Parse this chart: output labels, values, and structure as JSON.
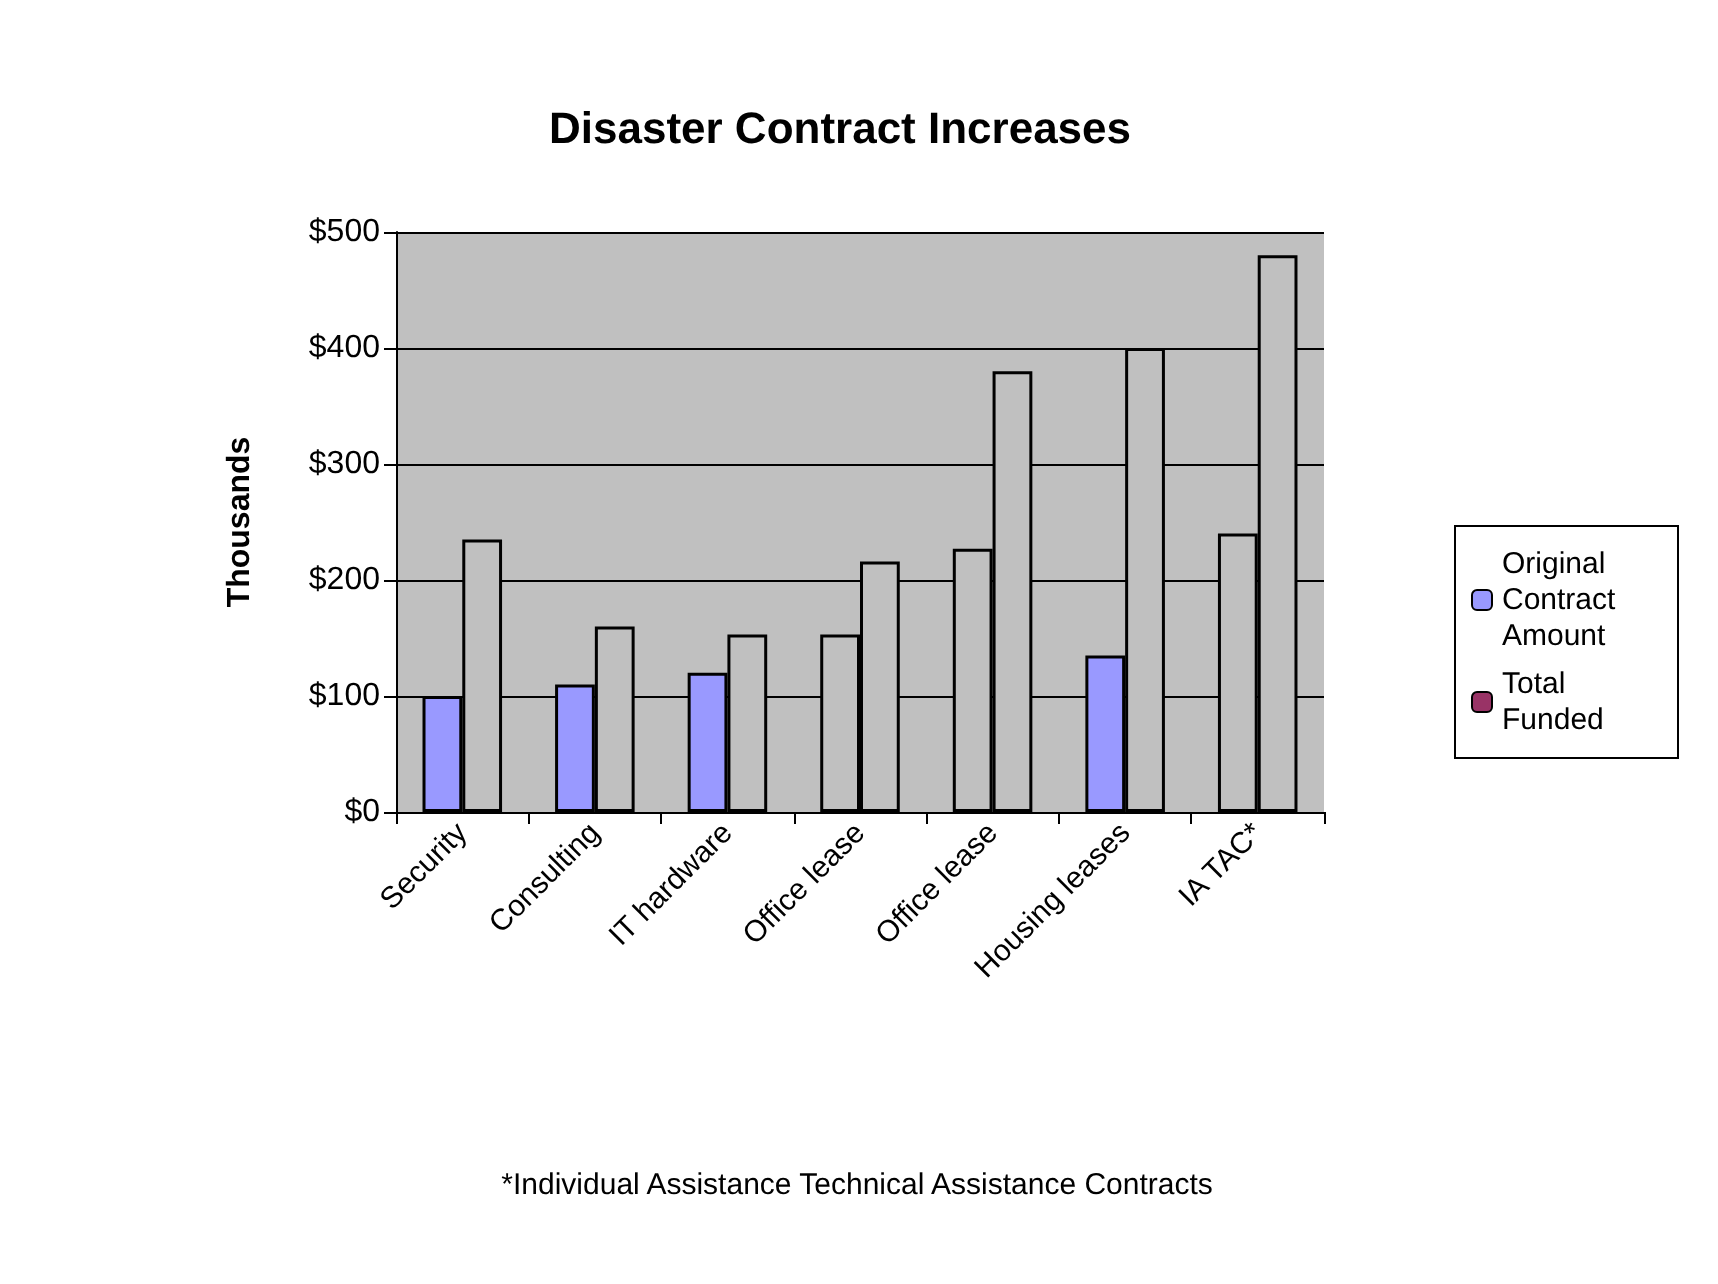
{
  "chart_data": {
    "type": "bar",
    "title": "Disaster Contract Increases",
    "ylabel": "Thousands",
    "categories": [
      "Security",
      "Consulting",
      "IT hardware",
      "Office lease",
      "Office lease",
      "Housing leases",
      "IA TAC*"
    ],
    "series": [
      {
        "name": "Original Contract Amount",
        "color": "#9999ff",
        "colors": [
          "#9999ff",
          "#9999ff",
          "#9999ff",
          "#c0c0c0",
          "#c0c0c0",
          "#9999ff",
          "#c0c0c0"
        ],
        "values": [
          100,
          110,
          120,
          153,
          227,
          135,
          240
        ]
      },
      {
        "name": "Total Funded",
        "color": "#993366",
        "colors": [
          "#c0c0c0",
          "#c0c0c0",
          "#c0c0c0",
          "#c0c0c0",
          "#c0c0c0",
          "#c0c0c0",
          "#c0c0c0"
        ],
        "values": [
          235,
          160,
          153,
          216,
          380,
          400,
          480
        ]
      }
    ],
    "ylim": [
      0,
      500
    ],
    "yticks": [
      {
        "value": 0,
        "label": "$0"
      },
      {
        "value": 100,
        "label": "$100"
      },
      {
        "value": 200,
        "label": "$200"
      },
      {
        "value": 300,
        "label": "$300"
      },
      {
        "value": 400,
        "label": "$400"
      },
      {
        "value": 500,
        "label": "$500"
      }
    ],
    "grid": "y",
    "legend": "right",
    "annotations": [
      "*Individual Assistance Technical Assistance Contracts"
    ]
  }
}
